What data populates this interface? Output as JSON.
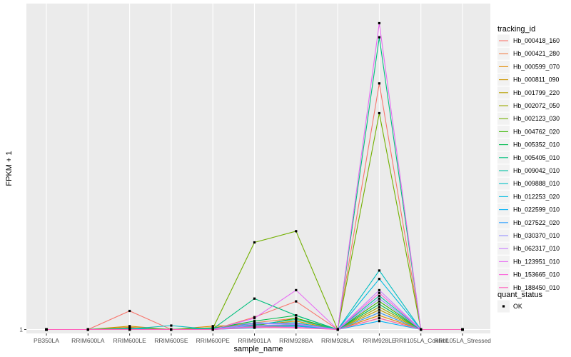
{
  "chart_data": {
    "type": "line",
    "title": "",
    "xlabel": "sample_name",
    "ylabel": "FPKM + 1",
    "ytick_labels": [
      {
        "label": "1",
        "value": 1
      }
    ],
    "ylim": [
      0.93,
      6.8
    ],
    "categories": [
      "PB350LA",
      "RRIM600LA",
      "RRIM600LE",
      "RRIM600SE",
      "RRIM600PE",
      "RRIM901LA",
      "RRIM928BA",
      "RRIM928LA",
      "RRIM928LE",
      "RRII105LA_Control",
      "RRII105LA_Stressed"
    ],
    "grid": true,
    "legend_placement": "right",
    "legend_title": "tracking_id",
    "shape_legend_title": "quant_status",
    "shape_legend_items": [
      {
        "label": "OK",
        "shape": "square"
      }
    ],
    "series": [
      {
        "name": "Hb_000418_160",
        "color": "#F8766D",
        "values": [
          1,
          1,
          1.33,
          1,
          1,
          1.22,
          1.5,
          1,
          5.38,
          1,
          1
        ]
      },
      {
        "name": "Hb_000421_280",
        "color": "#EF7F49",
        "values": [
          1,
          1,
          1.04,
          1,
          1.03,
          1.12,
          1.2,
          1,
          1.3,
          1,
          1
        ]
      },
      {
        "name": "Hb_000599_070",
        "color": "#E18A00",
        "values": [
          1,
          1,
          1.02,
          1,
          1.06,
          1.08,
          1.15,
          1,
          1.25,
          1,
          1
        ]
      },
      {
        "name": "Hb_000811_090",
        "color": "#CE9500",
        "values": [
          1,
          1,
          1.06,
          1,
          1.02,
          1.05,
          1.1,
          1,
          1.2,
          1,
          1
        ]
      },
      {
        "name": "Hb_001799_220",
        "color": "#B79F00",
        "values": [
          1,
          1,
          1.03,
          1,
          1.01,
          1.04,
          1.07,
          1,
          1.35,
          1,
          1
        ]
      },
      {
        "name": "Hb_002072_050",
        "color": "#9AA800",
        "values": [
          1,
          1,
          1.02,
          1,
          1.03,
          1.1,
          1.12,
          1,
          1.4,
          1,
          1
        ]
      },
      {
        "name": "Hb_002123_030",
        "color": "#72B000",
        "values": [
          1,
          1,
          1.01,
          1,
          1.02,
          2.55,
          2.75,
          1,
          4.85,
          1,
          1
        ]
      },
      {
        "name": "Hb_004762_020",
        "color": "#39B600",
        "values": [
          1,
          1,
          1.01,
          1,
          1.01,
          1.06,
          1.2,
          1,
          1.5,
          1,
          1
        ]
      },
      {
        "name": "Hb_005352_010",
        "color": "#00BB4E",
        "values": [
          1,
          1,
          1.0,
          1,
          1.02,
          1.15,
          1.25,
          1,
          1.45,
          1,
          1
        ]
      },
      {
        "name": "Hb_005405_010",
        "color": "#00BF7D",
        "values": [
          1,
          1,
          1.01,
          1,
          1.01,
          1.55,
          1.25,
          1,
          6.2,
          1,
          1
        ]
      },
      {
        "name": "Hb_009042_010",
        "color": "#00C1A3",
        "values": [
          1,
          1,
          1.02,
          1,
          1.02,
          1.08,
          1.18,
          1,
          1.6,
          1,
          1
        ]
      },
      {
        "name": "Hb_009888_010",
        "color": "#00BFC4",
        "values": [
          1,
          1,
          1.01,
          1.07,
          1.0,
          1.1,
          1.12,
          1,
          2.05,
          1,
          1
        ]
      },
      {
        "name": "Hb_012253_020",
        "color": "#00BAE0",
        "values": [
          1,
          1,
          1.01,
          1,
          1.0,
          1.05,
          1.08,
          1,
          1.9,
          1,
          1
        ]
      },
      {
        "name": "Hb_022599_010",
        "color": "#00B0F6",
        "values": [
          1,
          1,
          1.0,
          1,
          1.0,
          1.03,
          1.06,
          1,
          1.15,
          1,
          1
        ]
      },
      {
        "name": "Hb_027522_020",
        "color": "#35A2FF",
        "values": [
          1,
          1,
          1.0,
          1,
          1.0,
          1.12,
          1.1,
          1,
          1.3,
          1,
          1
        ]
      },
      {
        "name": "Hb_030370_010",
        "color": "#9590FF",
        "values": [
          1,
          1,
          1.0,
          1,
          1.0,
          1.07,
          1.09,
          1,
          1.55,
          1,
          1
        ]
      },
      {
        "name": "Hb_062317_010",
        "color": "#C77CFF",
        "values": [
          1,
          1,
          1.0,
          1,
          1.0,
          1.1,
          1.1,
          1,
          1.7,
          1,
          1
        ]
      },
      {
        "name": "Hb_123951_010",
        "color": "#E76BF3",
        "values": [
          1,
          1,
          1.0,
          1,
          1.0,
          1.2,
          1.7,
          1,
          6.45,
          1,
          1
        ]
      },
      {
        "name": "Hb_153665_010",
        "color": "#FA62DB",
        "values": [
          1,
          1,
          1.0,
          1,
          1.0,
          1.05,
          1.04,
          1,
          1.65,
          1,
          1
        ]
      },
      {
        "name": "Hb_188450_010",
        "color": "#FF62BC",
        "values": [
          1,
          1,
          1.0,
          1,
          1.0,
          1.04,
          1.03,
          1,
          1.2,
          1,
          1
        ]
      }
    ]
  }
}
